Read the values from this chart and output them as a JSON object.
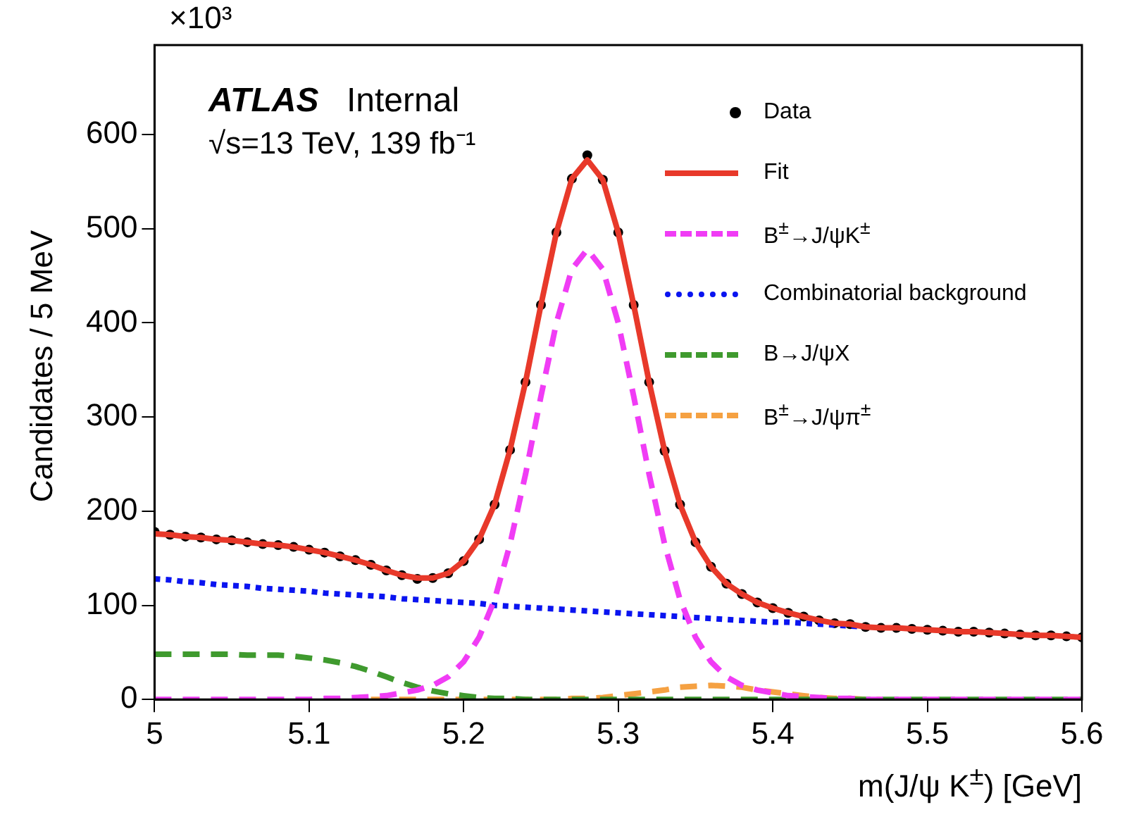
{
  "chart_data": {
    "type": "line",
    "xlabel": "m(J/ψ K$^{±}$) [GeV]",
    "ylabel": "Candidates / 5 MeV",
    "annotations": [
      "ATLAS",
      "Internal",
      "√s=13 TeV, 139 fb⁻¹",
      "×10³"
    ],
    "x": [
      5,
      5.01,
      5.02,
      5.03,
      5.04,
      5.05,
      5.06,
      5.07,
      5.08,
      5.09,
      5.1,
      5.11,
      5.12,
      5.13,
      5.14,
      5.15,
      5.16,
      5.17,
      5.18,
      5.19,
      5.2,
      5.21,
      5.22,
      5.23,
      5.24,
      5.25,
      5.26,
      5.27,
      5.28,
      5.29,
      5.3,
      5.31,
      5.32,
      5.33,
      5.34,
      5.35,
      5.36,
      5.37,
      5.38,
      5.39,
      5.4,
      5.41,
      5.42,
      5.43,
      5.44,
      5.45,
      5.46,
      5.47,
      5.48,
      5.49,
      5.5,
      5.51,
      5.52,
      5.53,
      5.54,
      5.55,
      5.56,
      5.57,
      5.58,
      5.59,
      5.6
    ],
    "series": [
      {
        "name": "Data",
        "type": "scatter",
        "marker": "circle",
        "color": "#000000",
        "values": [
          178,
          175,
          173,
          172,
          170,
          169,
          167,
          165,
          164,
          162,
          159,
          156,
          152,
          148,
          143,
          137,
          132,
          128,
          129,
          134,
          147,
          170,
          207,
          265,
          337,
          419,
          496,
          553,
          578,
          552,
          496,
          419,
          337,
          264,
          207,
          167,
          141,
          123,
          112,
          103,
          97,
          92,
          88,
          84,
          81,
          80,
          77,
          76,
          76,
          75,
          74,
          73,
          72,
          72,
          71,
          70,
          69,
          68,
          68,
          67,
          66
        ]
      },
      {
        "name": "Fit",
        "type": "line",
        "marker": "none",
        "line_style": "solid",
        "color": "#e8392a",
        "values": [
          176,
          175,
          173,
          172,
          170,
          169,
          167,
          165,
          164,
          162,
          159,
          156,
          152,
          148,
          143,
          137,
          132,
          129,
          129,
          134,
          147,
          170,
          207,
          265,
          337,
          419,
          496,
          553,
          573,
          552,
          496,
          419,
          337,
          264,
          207,
          167,
          141,
          123,
          112,
          103,
          97,
          92,
          88,
          84,
          81,
          80,
          77,
          76,
          76,
          75,
          74,
          73,
          72,
          72,
          71,
          70,
          69,
          68,
          68,
          67,
          66
        ]
      },
      {
        "name": "B$^{±}$→J/ψK$^{±}$",
        "type": "line",
        "marker": "none",
        "line_style": "dashed",
        "color": "#f03cf5",
        "values": [
          0,
          0,
          0,
          0,
          0,
          0,
          0,
          0,
          0,
          0,
          0,
          1,
          1,
          2,
          3,
          4,
          7,
          10,
          15,
          24,
          40,
          66,
          106,
          165,
          239,
          322,
          400,
          457,
          478,
          457,
          400,
          322,
          239,
          165,
          106,
          66,
          40,
          24,
          15,
          10,
          7,
          4,
          3,
          2,
          1,
          1,
          0,
          0,
          0,
          0,
          0,
          0,
          0,
          0,
          0,
          0,
          0,
          0,
          0,
          0,
          0
        ]
      },
      {
        "name": "Combinatorial background",
        "type": "line",
        "marker": "none",
        "line_style": "dotted",
        "color": "#0a14f0",
        "values": [
          128,
          127,
          125,
          124,
          122,
          121,
          120,
          118,
          117,
          116,
          115,
          113,
          112,
          111,
          110,
          109,
          107,
          106,
          105,
          104,
          103,
          102,
          100,
          99,
          98,
          97,
          96,
          95,
          94,
          93,
          92,
          91,
          90,
          89,
          88,
          87,
          86,
          85,
          84,
          83,
          82,
          82,
          81,
          80,
          79,
          78,
          77,
          null,
          null,
          null,
          null,
          null,
          null,
          null,
          null,
          null,
          null,
          null,
          null,
          null,
          null
        ]
      },
      {
        "name": "B→J/ψX",
        "type": "line",
        "marker": "none",
        "line_style": "dashed",
        "color": "#3f9a2e",
        "values": [
          48,
          48,
          48,
          48,
          48,
          48,
          47,
          47,
          47,
          46,
          44,
          42,
          39,
          35,
          30,
          24,
          18,
          13,
          9,
          6,
          4,
          2,
          1,
          1,
          0,
          0,
          0,
          0,
          0,
          0,
          0,
          0,
          0,
          0,
          0,
          0,
          0,
          0,
          0,
          0,
          0,
          0,
          0,
          0,
          0,
          0,
          0,
          0,
          0,
          0,
          0,
          0,
          0,
          0,
          0,
          0,
          0,
          0,
          0,
          0,
          0
        ]
      },
      {
        "name": "B$^{±}$→J/ψπ$^{±}$",
        "type": "line",
        "marker": "none",
        "line_style": "dashed",
        "color": "#f5a142",
        "values": [
          null,
          null,
          null,
          null,
          null,
          null,
          null,
          null,
          null,
          null,
          null,
          null,
          null,
          null,
          0,
          0,
          0,
          0,
          0,
          0,
          0,
          0,
          0,
          0,
          0,
          0,
          0,
          1,
          1,
          2,
          4,
          6,
          8,
          10,
          13,
          14,
          15,
          14,
          13,
          10,
          8,
          6,
          4,
          2,
          1,
          1,
          0,
          0,
          null,
          null,
          null,
          null,
          null,
          null,
          null,
          null,
          null,
          null,
          null,
          null,
          null
        ]
      }
    ],
    "xlim": [
      5,
      5.6
    ],
    "xticks": [
      5,
      5.1,
      5.2,
      5.3,
      5.4,
      5.5,
      5.6
    ],
    "ylim": [
      0,
      695
    ],
    "yticks": [
      0,
      100,
      200,
      300,
      400,
      500,
      600
    ],
    "grid": false,
    "legend": "top right"
  }
}
